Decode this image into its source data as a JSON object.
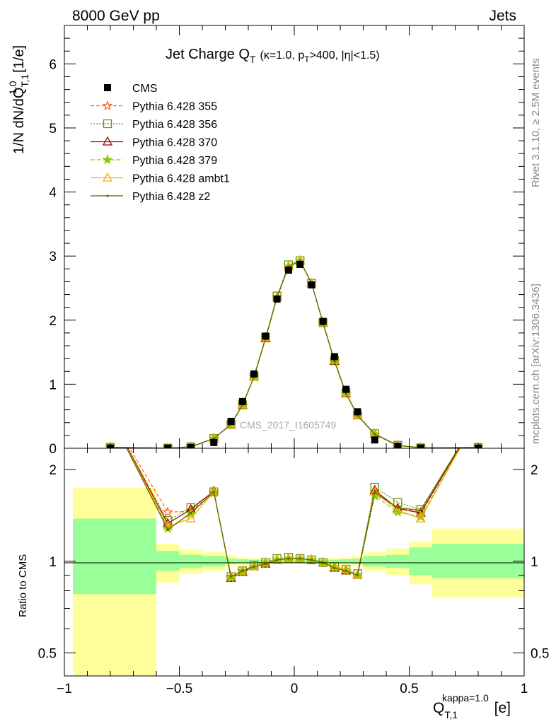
{
  "header": {
    "left": "8000 GeV pp",
    "right": "Jets"
  },
  "side": {
    "upper": "Rivet 3.1.10, ≥ 2.5M events",
    "lower": "mcplots.cern.ch [arXiv:1306.3436]"
  },
  "watermark": "CMS_2017_I1605749",
  "title": {
    "main": "Jet Charge Q",
    "main_sub": "T",
    "cond": "(κ=1.0, p",
    "cond_sub": "T",
    "cond_rest": ">400, |η|<1.5)"
  },
  "ylabel_top": {
    "pre": "1/N dN/dQ",
    "sub": "T,1",
    "sup": "1.0",
    "post": " [1/e]"
  },
  "ylabel_bottom": "Ratio to CMS",
  "xlabel": {
    "main": "Q",
    "sub": "T,1",
    "sup": "kappa=1.0",
    "post": " [e]"
  },
  "colors": {
    "cms": "#000000",
    "p355": "#ff6621",
    "p356": "#669900",
    "p370": "#990000",
    "p379": "#88cc00",
    "ambt1": "#ffaa00",
    "z2": "#556b00",
    "band_inner": "#99ff99",
    "band_outer": "#ffff99"
  },
  "chart_data": {
    "type": "line",
    "title": "Jet Charge Q_T (κ=1.0, p_T>400, |η|<1.5)",
    "xlabel": "Q_T,1^kappa=1.0 [e]",
    "ylabel": "1/N dN/dQ_T,1^1.0 [1/e]",
    "xlim": [
      -1,
      1
    ],
    "ylim": [
      0,
      6.6
    ],
    "ratio_ylim": [
      0.42,
      2.35
    ],
    "xticks": [
      "−1",
      "−0.5",
      "0",
      "0.5",
      "1"
    ],
    "yticks": [
      "0",
      "1",
      "2",
      "3",
      "4",
      "5",
      "6"
    ],
    "ratio_yticks": [
      "0.5",
      "1",
      "2"
    ],
    "x": [
      -0.8,
      -0.55,
      -0.45,
      -0.35,
      -0.275,
      -0.225,
      -0.175,
      -0.125,
      -0.075,
      -0.025,
      0.025,
      0.075,
      0.125,
      0.175,
      0.225,
      0.275,
      0.35,
      0.45,
      0.55,
      0.8
    ],
    "cms": [
      0.005,
      0.002,
      0.015,
      0.09,
      0.42,
      0.73,
      1.16,
      1.75,
      2.33,
      2.78,
      2.87,
      2.55,
      1.98,
      1.43,
      0.92,
      0.57,
      0.13,
      0.03,
      0.005,
      0.004
    ],
    "series": [
      {
        "name": "Pythia 6.428 355",
        "key": "p355",
        "ratio": [
          3.0,
          1.45,
          1.46,
          1.68,
          0.89,
          0.93,
          0.96,
          0.98,
          1.01,
          1.02,
          1.02,
          1.01,
          0.99,
          0.95,
          0.93,
          0.9,
          1.66,
          1.5,
          1.45,
          3.0
        ]
      },
      {
        "name": "Pythia 6.428 356",
        "key": "p356",
        "ratio": [
          3.0,
          1.36,
          1.5,
          1.69,
          0.89,
          0.93,
          0.97,
          0.99,
          1.02,
          1.03,
          1.02,
          1.01,
          0.99,
          0.96,
          0.94,
          0.91,
          1.75,
          1.56,
          1.48,
          3.0
        ]
      },
      {
        "name": "Pythia 6.428 370",
        "key": "p370",
        "ratio": [
          3.0,
          1.33,
          1.48,
          1.7,
          0.88,
          0.92,
          0.96,
          0.98,
          1.01,
          1.02,
          1.02,
          1.01,
          0.99,
          0.95,
          0.93,
          0.9,
          1.71,
          1.49,
          1.44,
          3.0
        ]
      },
      {
        "name": "Pythia 6.428 379",
        "key": "p379",
        "ratio": [
          3.0,
          1.28,
          1.43,
          1.69,
          0.88,
          0.92,
          0.96,
          0.98,
          1.01,
          1.02,
          1.02,
          1.01,
          0.99,
          0.95,
          0.93,
          0.9,
          1.64,
          1.45,
          1.4,
          3.0
        ]
      },
      {
        "name": "Pythia 6.428 ambt1",
        "key": "ambt1",
        "ratio": [
          3.0,
          1.3,
          1.38,
          1.69,
          0.89,
          0.93,
          0.96,
          0.99,
          1.01,
          1.02,
          1.02,
          1.01,
          0.99,
          0.96,
          0.94,
          0.9,
          1.69,
          1.47,
          1.38,
          3.0
        ]
      },
      {
        "name": "Pythia 6.428 z2",
        "key": "z2",
        "ratio": [
          3.0,
          1.27,
          1.44,
          1.69,
          0.89,
          0.93,
          0.96,
          0.98,
          1.01,
          1.02,
          1.02,
          1.01,
          0.99,
          0.95,
          0.93,
          0.9,
          1.68,
          1.5,
          1.47,
          3.0
        ]
      }
    ],
    "bins": [
      {
        "lo": -1.0,
        "hi": -0.6,
        "inner": [
          0.78,
          1.38
        ],
        "outer": [
          0.38,
          1.74
        ]
      },
      {
        "lo": -0.6,
        "hi": -0.5,
        "inner": [
          0.93,
          1.08
        ],
        "outer": [
          0.85,
          1.14
        ]
      },
      {
        "lo": -0.5,
        "hi": -0.4,
        "inner": [
          0.95,
          1.05
        ],
        "outer": [
          0.91,
          1.09
        ]
      },
      {
        "lo": -0.4,
        "hi": -0.3,
        "inner": [
          0.96,
          1.04
        ],
        "outer": [
          0.93,
          1.07
        ]
      },
      {
        "lo": -0.3,
        "hi": -0.25,
        "inner": [
          0.98,
          1.02
        ],
        "outer": [
          0.96,
          1.04
        ]
      },
      {
        "lo": -0.25,
        "hi": -0.2,
        "inner": [
          0.985,
          1.015
        ],
        "outer": [
          0.97,
          1.03
        ]
      },
      {
        "lo": -0.2,
        "hi": -0.15,
        "inner": [
          0.988,
          1.012
        ],
        "outer": [
          0.978,
          1.022
        ]
      },
      {
        "lo": -0.15,
        "hi": -0.1,
        "inner": [
          0.99,
          1.01
        ],
        "outer": [
          0.98,
          1.02
        ]
      },
      {
        "lo": -0.1,
        "hi": -0.05,
        "inner": [
          0.99,
          1.01
        ],
        "outer": [
          0.982,
          1.018
        ]
      },
      {
        "lo": -0.05,
        "hi": 0.0,
        "inner": [
          0.99,
          1.01
        ],
        "outer": [
          0.984,
          1.016
        ]
      },
      {
        "lo": 0.0,
        "hi": 0.05,
        "inner": [
          0.99,
          1.01
        ],
        "outer": [
          0.984,
          1.016
        ]
      },
      {
        "lo": 0.05,
        "hi": 0.1,
        "inner": [
          0.99,
          1.01
        ],
        "outer": [
          0.982,
          1.018
        ]
      },
      {
        "lo": 0.1,
        "hi": 0.15,
        "inner": [
          0.99,
          1.01
        ],
        "outer": [
          0.98,
          1.02
        ]
      },
      {
        "lo": 0.15,
        "hi": 0.2,
        "inner": [
          0.988,
          1.012
        ],
        "outer": [
          0.976,
          1.024
        ]
      },
      {
        "lo": 0.2,
        "hi": 0.25,
        "inner": [
          0.985,
          1.015
        ],
        "outer": [
          0.97,
          1.03
        ]
      },
      {
        "lo": 0.25,
        "hi": 0.3,
        "inner": [
          0.98,
          1.02
        ],
        "outer": [
          0.96,
          1.04
        ]
      },
      {
        "lo": 0.3,
        "hi": 0.4,
        "inner": [
          0.96,
          1.04
        ],
        "outer": [
          0.93,
          1.07
        ]
      },
      {
        "lo": 0.4,
        "hi": 0.5,
        "inner": [
          0.95,
          1.05
        ],
        "outer": [
          0.9,
          1.1
        ]
      },
      {
        "lo": 0.5,
        "hi": 0.6,
        "inner": [
          0.9,
          1.11
        ],
        "outer": [
          0.84,
          1.16
        ]
      },
      {
        "lo": 0.6,
        "hi": 1.0,
        "inner": [
          0.88,
          1.14
        ],
        "outer": [
          0.76,
          1.28
        ]
      }
    ]
  }
}
